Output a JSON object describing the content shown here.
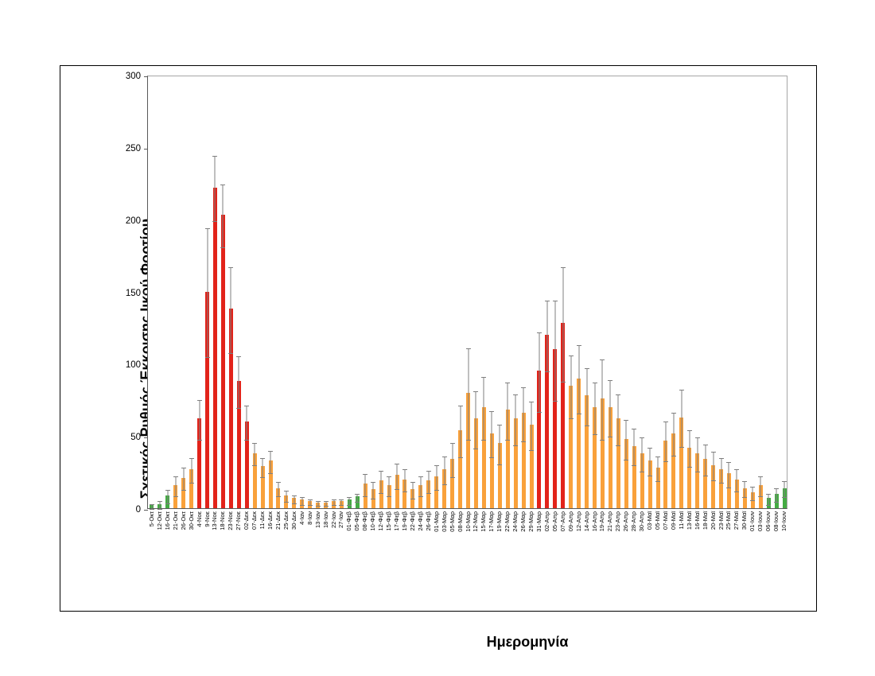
{
  "figure": {
    "y_axis_title": "Σχετικός Ρυθμός Έκκρισης Ιικού Φορτίου",
    "x_axis_title": "Ημερομηνία"
  },
  "colors": {
    "green": "#44ab43",
    "orange": "#f9a13b",
    "red": "#e2231a",
    "error_bar": "#7f7f7f",
    "axis": "#595959",
    "frame": "#000000",
    "background": "#ffffff"
  },
  "chart_data": {
    "type": "bar",
    "title": "",
    "xlabel": "Ημερομηνία",
    "ylabel": "Σχετικός Ρυθμός Έκκρισης Ιικού Φορτίου",
    "ylim": [
      0,
      300
    ],
    "y_ticks": [
      0,
      50,
      100,
      150,
      200,
      250,
      300
    ],
    "grid": false,
    "legend": "none",
    "error_bars": "symmetric, gray whiskers with caps",
    "points": [
      {
        "date": "5-Οκτ",
        "value": 2,
        "err": 2,
        "color": "green"
      },
      {
        "date": "12-Οκτ",
        "value": 3,
        "err": 3,
        "color": "green"
      },
      {
        "date": "16-Οκτ",
        "value": 9,
        "err": 5,
        "color": "green"
      },
      {
        "date": "21-Οκτ",
        "value": 16,
        "err": 7,
        "color": "orange"
      },
      {
        "date": "26-Οκτ",
        "value": 21,
        "err": 8,
        "color": "orange"
      },
      {
        "date": "30-Οκτ",
        "value": 27,
        "err": 9,
        "color": "orange"
      },
      {
        "date": "4-Νοε",
        "value": 62,
        "err": 14,
        "color": "red"
      },
      {
        "date": "9-Νοε",
        "value": 150,
        "err": 45,
        "color": "red"
      },
      {
        "date": "13-Νοε",
        "value": 222,
        "err": 23,
        "color": "red"
      },
      {
        "date": "18-Νοε",
        "value": 203,
        "err": 22,
        "color": "red"
      },
      {
        "date": "23-Νοε",
        "value": 138,
        "err": 30,
        "color": "red"
      },
      {
        "date": "27-Νοε",
        "value": 88,
        "err": 18,
        "color": "red"
      },
      {
        "date": "02-Δεκ",
        "value": 60,
        "err": 12,
        "color": "red"
      },
      {
        "date": "07-Δεκ",
        "value": 38,
        "err": 8,
        "color": "orange"
      },
      {
        "date": "11-Δεκ",
        "value": 29,
        "err": 7,
        "color": "orange"
      },
      {
        "date": "16-Δεκ",
        "value": 33,
        "err": 8,
        "color": "orange"
      },
      {
        "date": "21-Δεκ",
        "value": 14,
        "err": 5,
        "color": "orange"
      },
      {
        "date": "25-Δεκ",
        "value": 9,
        "err": 4,
        "color": "orange"
      },
      {
        "date": "30-Δεκ",
        "value": 7,
        "err": 3,
        "color": "orange"
      },
      {
        "date": "4-Ιαν",
        "value": 6,
        "err": 3,
        "color": "orange"
      },
      {
        "date": "8-Ιαν",
        "value": 5,
        "err": 2,
        "color": "orange"
      },
      {
        "date": "13-Ιαν",
        "value": 4,
        "err": 2,
        "color": "orange"
      },
      {
        "date": "18-Ιαν",
        "value": 4,
        "err": 2,
        "color": "orange"
      },
      {
        "date": "22-Ιαν",
        "value": 5,
        "err": 2,
        "color": "orange"
      },
      {
        "date": "27-Ιαν",
        "value": 5,
        "err": 2,
        "color": "orange"
      },
      {
        "date": "01-Φεβ",
        "value": 6,
        "err": 3,
        "color": "green"
      },
      {
        "date": "05-Φεβ",
        "value": 8,
        "err": 3,
        "color": "green"
      },
      {
        "date": "08-Φεβ",
        "value": 17,
        "err": 8,
        "color": "orange"
      },
      {
        "date": "10-Φεβ",
        "value": 13,
        "err": 6,
        "color": "orange"
      },
      {
        "date": "12-Φεβ",
        "value": 19,
        "err": 8,
        "color": "orange"
      },
      {
        "date": "15-Φεβ",
        "value": 16,
        "err": 7,
        "color": "orange"
      },
      {
        "date": "17-Φεβ",
        "value": 23,
        "err": 9,
        "color": "orange"
      },
      {
        "date": "19-Φεβ",
        "value": 20,
        "err": 8,
        "color": "orange"
      },
      {
        "date": "22-Φεβ",
        "value": 13,
        "err": 6,
        "color": "orange"
      },
      {
        "date": "24-Φεβ",
        "value": 16,
        "err": 7,
        "color": "orange"
      },
      {
        "date": "26-Φεβ",
        "value": 19,
        "err": 8,
        "color": "orange"
      },
      {
        "date": "01-Μαρ",
        "value": 22,
        "err": 9,
        "color": "orange"
      },
      {
        "date": "03-Μαρ",
        "value": 27,
        "err": 10,
        "color": "orange"
      },
      {
        "date": "05-Μαρ",
        "value": 34,
        "err": 12,
        "color": "orange"
      },
      {
        "date": "08-Μαρ",
        "value": 54,
        "err": 18,
        "color": "orange"
      },
      {
        "date": "10-Μαρ",
        "value": 80,
        "err": 32,
        "color": "orange"
      },
      {
        "date": "12-Μαρ",
        "value": 62,
        "err": 20,
        "color": "orange"
      },
      {
        "date": "15-Μαρ",
        "value": 70,
        "err": 22,
        "color": "orange"
      },
      {
        "date": "17-Μαρ",
        "value": 52,
        "err": 16,
        "color": "orange"
      },
      {
        "date": "19-Μαρ",
        "value": 45,
        "err": 14,
        "color": "orange"
      },
      {
        "date": "22-Μαρ",
        "value": 68,
        "err": 20,
        "color": "orange"
      },
      {
        "date": "24-Μαρ",
        "value": 62,
        "err": 18,
        "color": "orange"
      },
      {
        "date": "26-Μαρ",
        "value": 66,
        "err": 19,
        "color": "orange"
      },
      {
        "date": "29-Μαρ",
        "value": 58,
        "err": 17,
        "color": "orange"
      },
      {
        "date": "31-Μαρ",
        "value": 95,
        "err": 28,
        "color": "red"
      },
      {
        "date": "02-Απρ",
        "value": 120,
        "err": 25,
        "color": "red"
      },
      {
        "date": "05-Απρ",
        "value": 110,
        "err": 35,
        "color": "red"
      },
      {
        "date": "07-Απρ",
        "value": 128,
        "err": 40,
        "color": "red"
      },
      {
        "date": "09-Απρ",
        "value": 85,
        "err": 22,
        "color": "orange"
      },
      {
        "date": "12-Απρ",
        "value": 90,
        "err": 24,
        "color": "orange"
      },
      {
        "date": "14-Απρ",
        "value": 78,
        "err": 20,
        "color": "orange"
      },
      {
        "date": "16-Απρ",
        "value": 70,
        "err": 18,
        "color": "orange"
      },
      {
        "date": "19-Απρ",
        "value": 76,
        "err": 28,
        "color": "orange"
      },
      {
        "date": "21-Απρ",
        "value": 70,
        "err": 20,
        "color": "orange"
      },
      {
        "date": "23-Απρ",
        "value": 62,
        "err": 18,
        "color": "orange"
      },
      {
        "date": "26-Απρ",
        "value": 48,
        "err": 14,
        "color": "orange"
      },
      {
        "date": "28-Απρ",
        "value": 43,
        "err": 13,
        "color": "orange"
      },
      {
        "date": "30-Απρ",
        "value": 38,
        "err": 12,
        "color": "orange"
      },
      {
        "date": "03-Μαϊ",
        "value": 33,
        "err": 10,
        "color": "orange"
      },
      {
        "date": "05-Μαϊ",
        "value": 28,
        "err": 9,
        "color": "orange"
      },
      {
        "date": "07-Μαϊ",
        "value": 47,
        "err": 14,
        "color": "orange"
      },
      {
        "date": "09-Μαϊ",
        "value": 52,
        "err": 15,
        "color": "orange"
      },
      {
        "date": "11-Μαϊ",
        "value": 63,
        "err": 20,
        "color": "orange"
      },
      {
        "date": "13-Μαϊ",
        "value": 42,
        "err": 13,
        "color": "orange"
      },
      {
        "date": "16-Μαϊ",
        "value": 38,
        "err": 12,
        "color": "orange"
      },
      {
        "date": "18-Μαϊ",
        "value": 34,
        "err": 11,
        "color": "orange"
      },
      {
        "date": "20-Μαϊ",
        "value": 30,
        "err": 10,
        "color": "orange"
      },
      {
        "date": "23-Μαϊ",
        "value": 27,
        "err": 9,
        "color": "orange"
      },
      {
        "date": "25-Μαϊ",
        "value": 24,
        "err": 9,
        "color": "orange"
      },
      {
        "date": "27-Μαϊ",
        "value": 20,
        "err": 8,
        "color": "orange"
      },
      {
        "date": "30-Μαϊ",
        "value": 14,
        "err": 6,
        "color": "orange"
      },
      {
        "date": "01-Ιουν",
        "value": 11,
        "err": 5,
        "color": "orange"
      },
      {
        "date": "03-Ιουν",
        "value": 16,
        "err": 7,
        "color": "orange"
      },
      {
        "date": "06-Ιουν",
        "value": 7,
        "err": 4,
        "color": "green"
      },
      {
        "date": "08-Ιουν",
        "value": 10,
        "err": 5,
        "color": "green"
      },
      {
        "date": "10-Ιουν",
        "value": 14,
        "err": 6,
        "color": "green"
      }
    ]
  }
}
